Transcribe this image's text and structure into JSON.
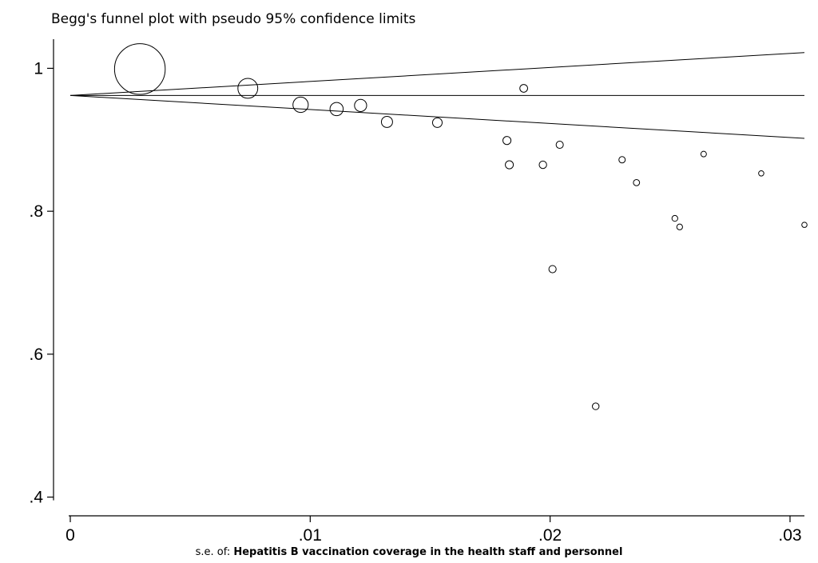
{
  "chart_data": {
    "type": "scatter",
    "title": "Begg's funnel plot with pseudo 95% confidence limits",
    "xlabel_prefix": "s.e. of:",
    "xlabel_bold": "Hepatitis B vaccination coverage in the health staff and personnel",
    "ylabel": "",
    "xlim": [
      0,
      0.0306
    ],
    "ylim": [
      0.385,
      1.043
    ],
    "x_ticks": [
      0,
      0.01,
      0.02,
      0.03
    ],
    "x_tick_labels": [
      "0",
      ".01",
      ".02",
      ".03"
    ],
    "y_ticks": [
      0.4,
      0.6,
      0.8,
      1.0
    ],
    "y_tick_labels": [
      ".4",
      ".6",
      ".8",
      "1"
    ],
    "pooled_estimate": 0.962,
    "confidence_limits": {
      "upper": [
        [
          0,
          0.962
        ],
        [
          0.0306,
          1.022
        ]
      ],
      "lower": [
        [
          0,
          0.962
        ],
        [
          0.0306,
          0.902
        ]
      ]
    },
    "points": [
      {
        "se": 0.0029,
        "y": 0.999
      },
      {
        "se": 0.0074,
        "y": 0.972
      },
      {
        "se": 0.0096,
        "y": 0.949
      },
      {
        "se": 0.0111,
        "y": 0.943
      },
      {
        "se": 0.0121,
        "y": 0.948
      },
      {
        "se": 0.0132,
        "y": 0.925
      },
      {
        "se": 0.0153,
        "y": 0.924
      },
      {
        "se": 0.0182,
        "y": 0.899
      },
      {
        "se": 0.0183,
        "y": 0.865
      },
      {
        "se": 0.0189,
        "y": 0.972
      },
      {
        "se": 0.0197,
        "y": 0.865
      },
      {
        "se": 0.0201,
        "y": 0.719
      },
      {
        "se": 0.0204,
        "y": 0.893
      },
      {
        "se": 0.0219,
        "y": 0.527
      },
      {
        "se": 0.023,
        "y": 0.872
      },
      {
        "se": 0.0236,
        "y": 0.84
      },
      {
        "se": 0.0252,
        "y": 0.79
      },
      {
        "se": 0.0254,
        "y": 0.778
      },
      {
        "se": 0.0264,
        "y": 0.88
      },
      {
        "se": 0.0288,
        "y": 0.853
      },
      {
        "se": 0.0306,
        "y": 0.781
      }
    ],
    "grid": false,
    "legend": "none"
  }
}
